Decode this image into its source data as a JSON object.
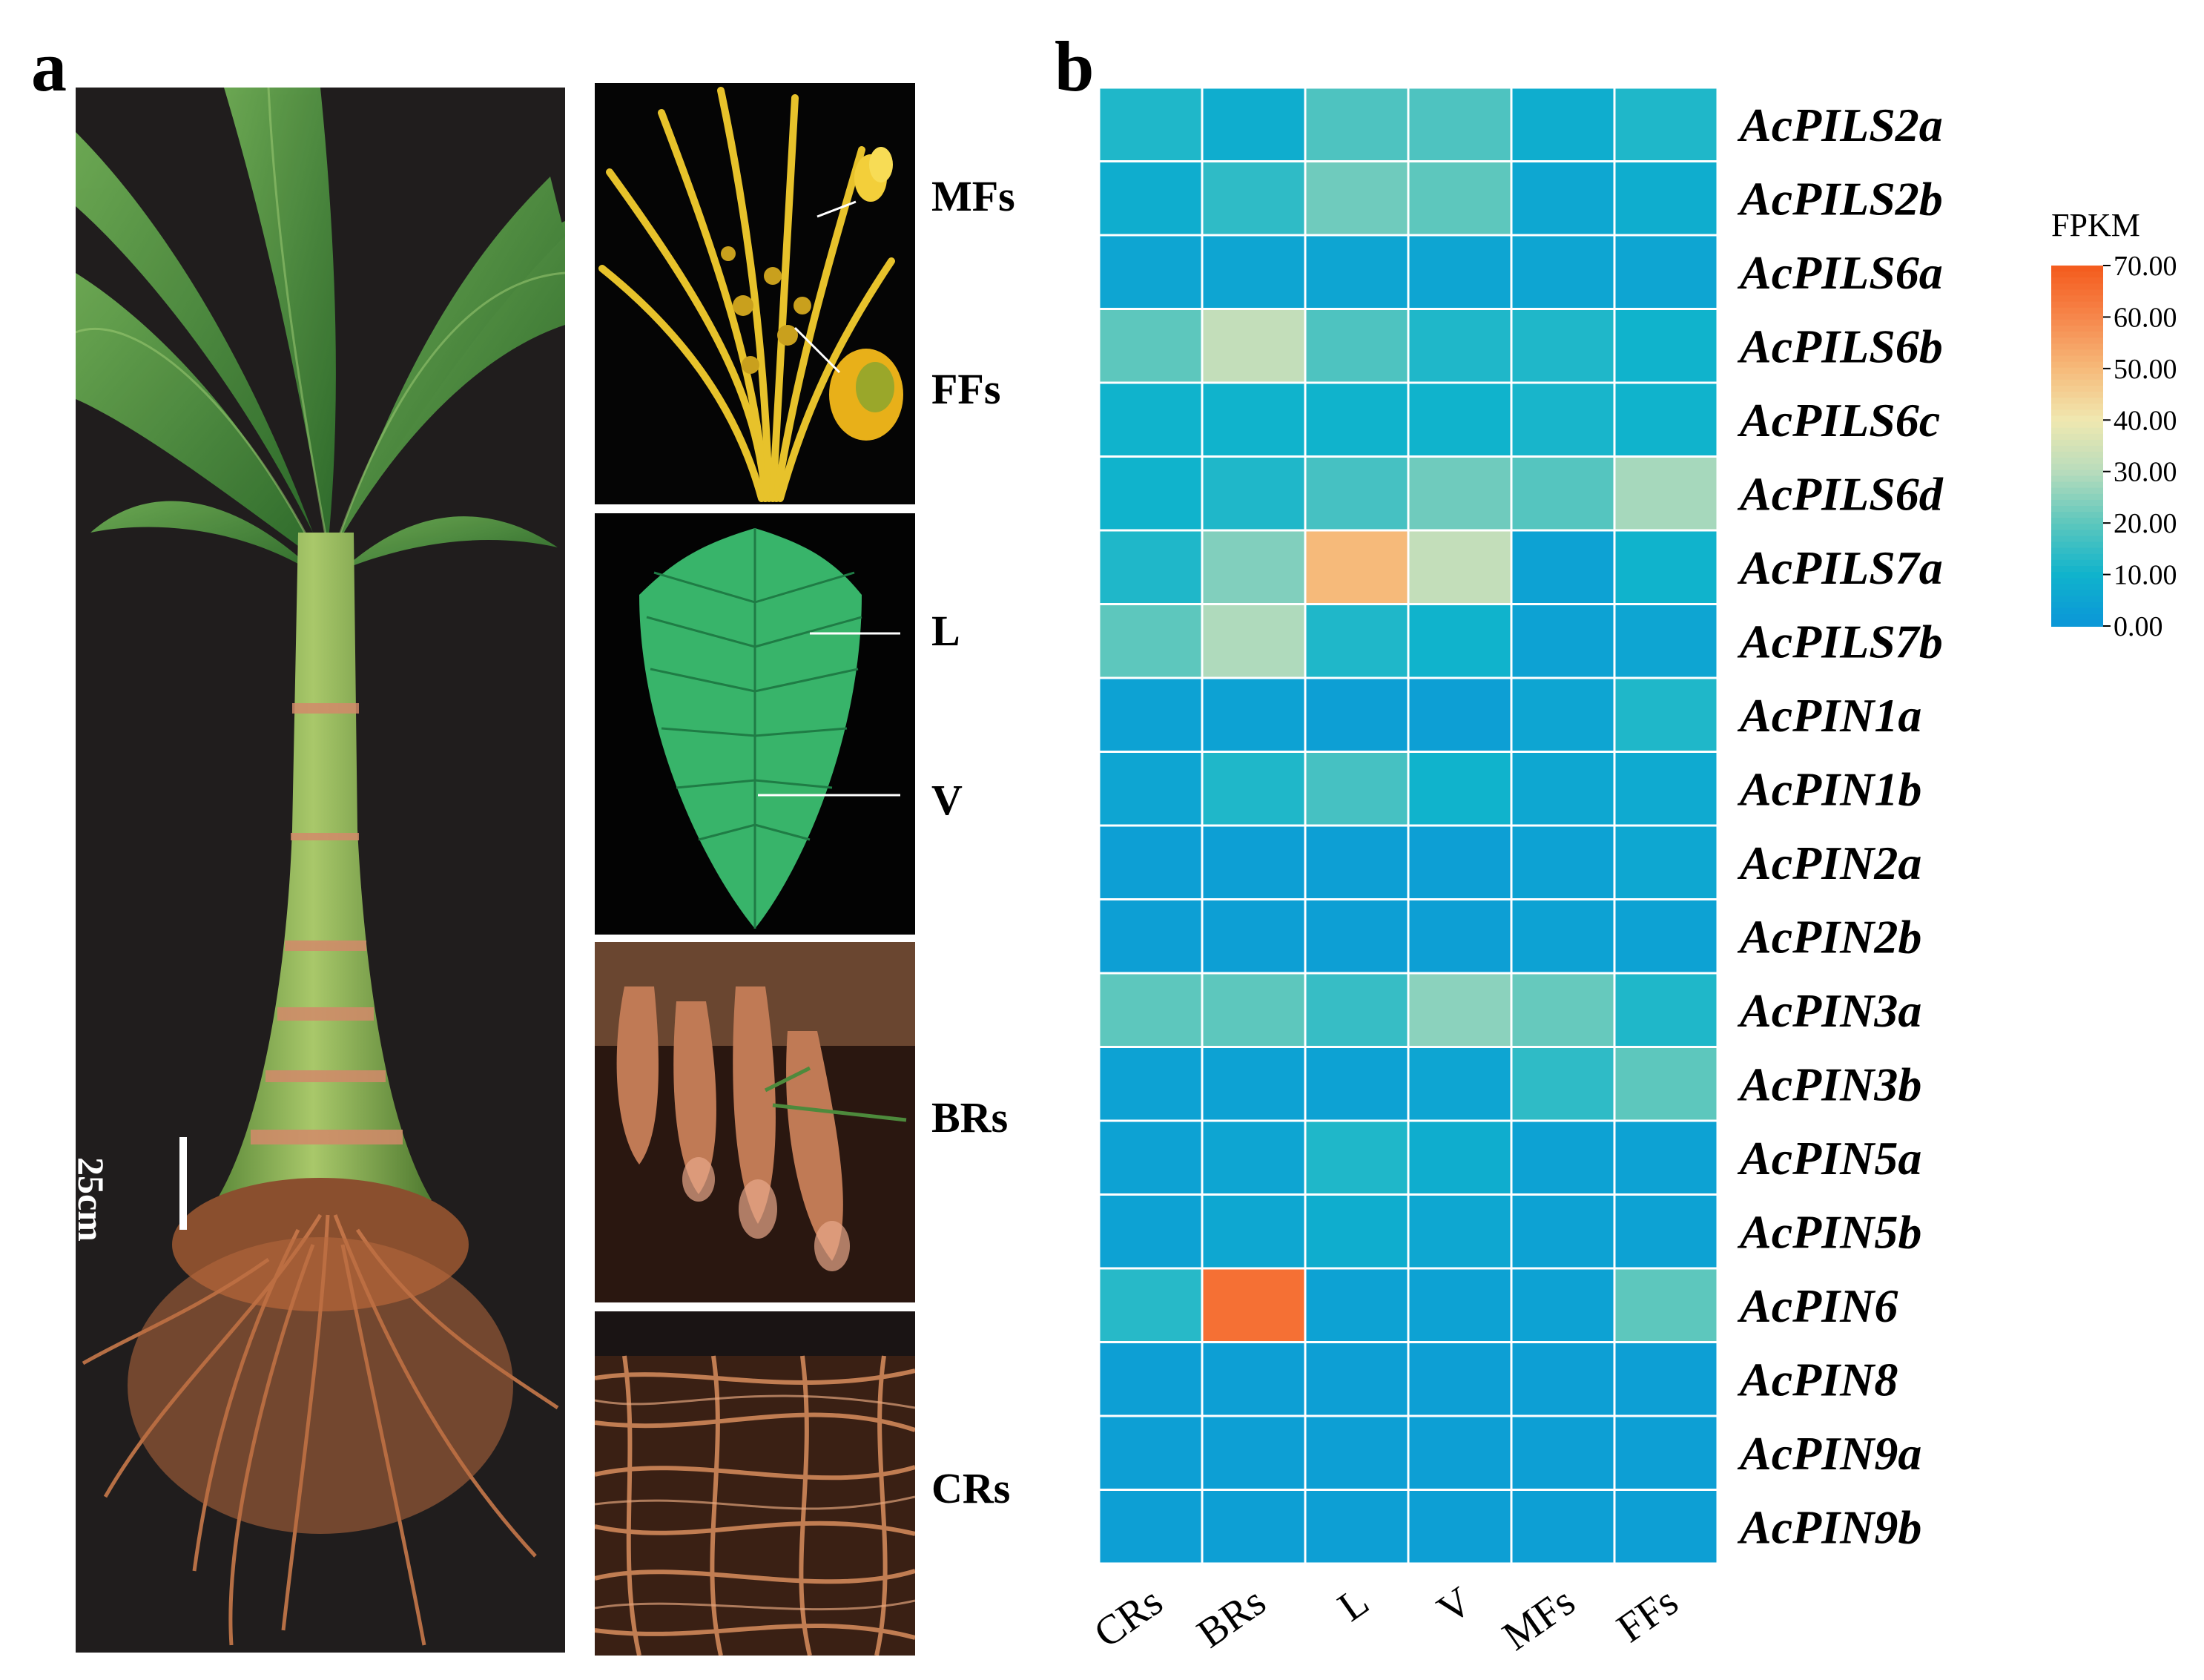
{
  "figure": {
    "panel_a_label": "a",
    "panel_b_label": "b",
    "scale_bar_label": "25cm",
    "tissue_labels": {
      "MFs": "MFs",
      "FFs": "FFs",
      "L": "L",
      "V": "V",
      "BRs": "BRs",
      "CRs": "CRs"
    }
  },
  "chart_data": {
    "type": "heatmap",
    "columns": [
      "CRs",
      "BRs",
      "L",
      "V",
      "MFs",
      "FFs"
    ],
    "rows": [
      "AcPILS2a",
      "AcPILS2b",
      "AcPILS6a",
      "AcPILS6b",
      "AcPILS6c",
      "AcPILS6d",
      "AcPILS7a",
      "AcPILS7b",
      "AcPIN1a",
      "AcPIN1b",
      "AcPIN2a",
      "AcPIN2b",
      "AcPIN3a",
      "AcPIN3b",
      "AcPIN5a",
      "AcPIN5b",
      "AcPIN6",
      "AcPIN8",
      "AcPIN9a",
      "AcPIN9b"
    ],
    "values": [
      [
        12,
        8,
        18,
        18,
        8,
        12
      ],
      [
        8,
        14,
        22,
        20,
        6,
        8
      ],
      [
        5,
        5,
        5,
        5,
        5,
        5
      ],
      [
        20,
        32,
        18,
        12,
        12,
        10
      ],
      [
        10,
        10,
        10,
        10,
        11,
        10
      ],
      [
        10,
        12,
        17,
        22,
        19,
        28
      ],
      [
        12,
        24,
        50,
        32,
        4,
        10
      ],
      [
        20,
        29,
        12,
        10,
        4,
        5
      ],
      [
        4,
        4,
        3,
        3,
        5,
        12
      ],
      [
        5,
        12,
        17,
        10,
        6,
        7
      ],
      [
        3,
        3,
        3,
        3,
        4,
        6
      ],
      [
        3,
        3,
        3,
        3,
        4,
        4
      ],
      [
        20,
        20,
        15,
        25,
        21,
        12
      ],
      [
        4,
        4,
        4,
        5,
        14,
        20
      ],
      [
        4,
        5,
        12,
        8,
        4,
        4
      ],
      [
        4,
        6,
        8,
        6,
        4,
        4
      ],
      [
        13,
        65,
        4,
        4,
        4,
        20
      ],
      [
        3,
        3,
        3,
        3,
        3,
        3
      ],
      [
        3,
        3,
        3,
        3,
        3,
        3
      ],
      [
        3,
        3,
        3,
        3,
        3,
        3
      ]
    ],
    "colorbar": {
      "title": "FPKM",
      "min": 0,
      "max": 70,
      "ticks": [
        "70.00",
        "60.00",
        "50.00",
        "40.00",
        "30.00",
        "20.00",
        "10.00",
        "0.00"
      ],
      "colors": [
        "#0b96d8",
        "#10b3cc",
        "#5dc7bd",
        "#b8dcbc",
        "#f0e8b0",
        "#f6ba7a",
        "#f6864b",
        "#f45a1c"
      ]
    }
  }
}
